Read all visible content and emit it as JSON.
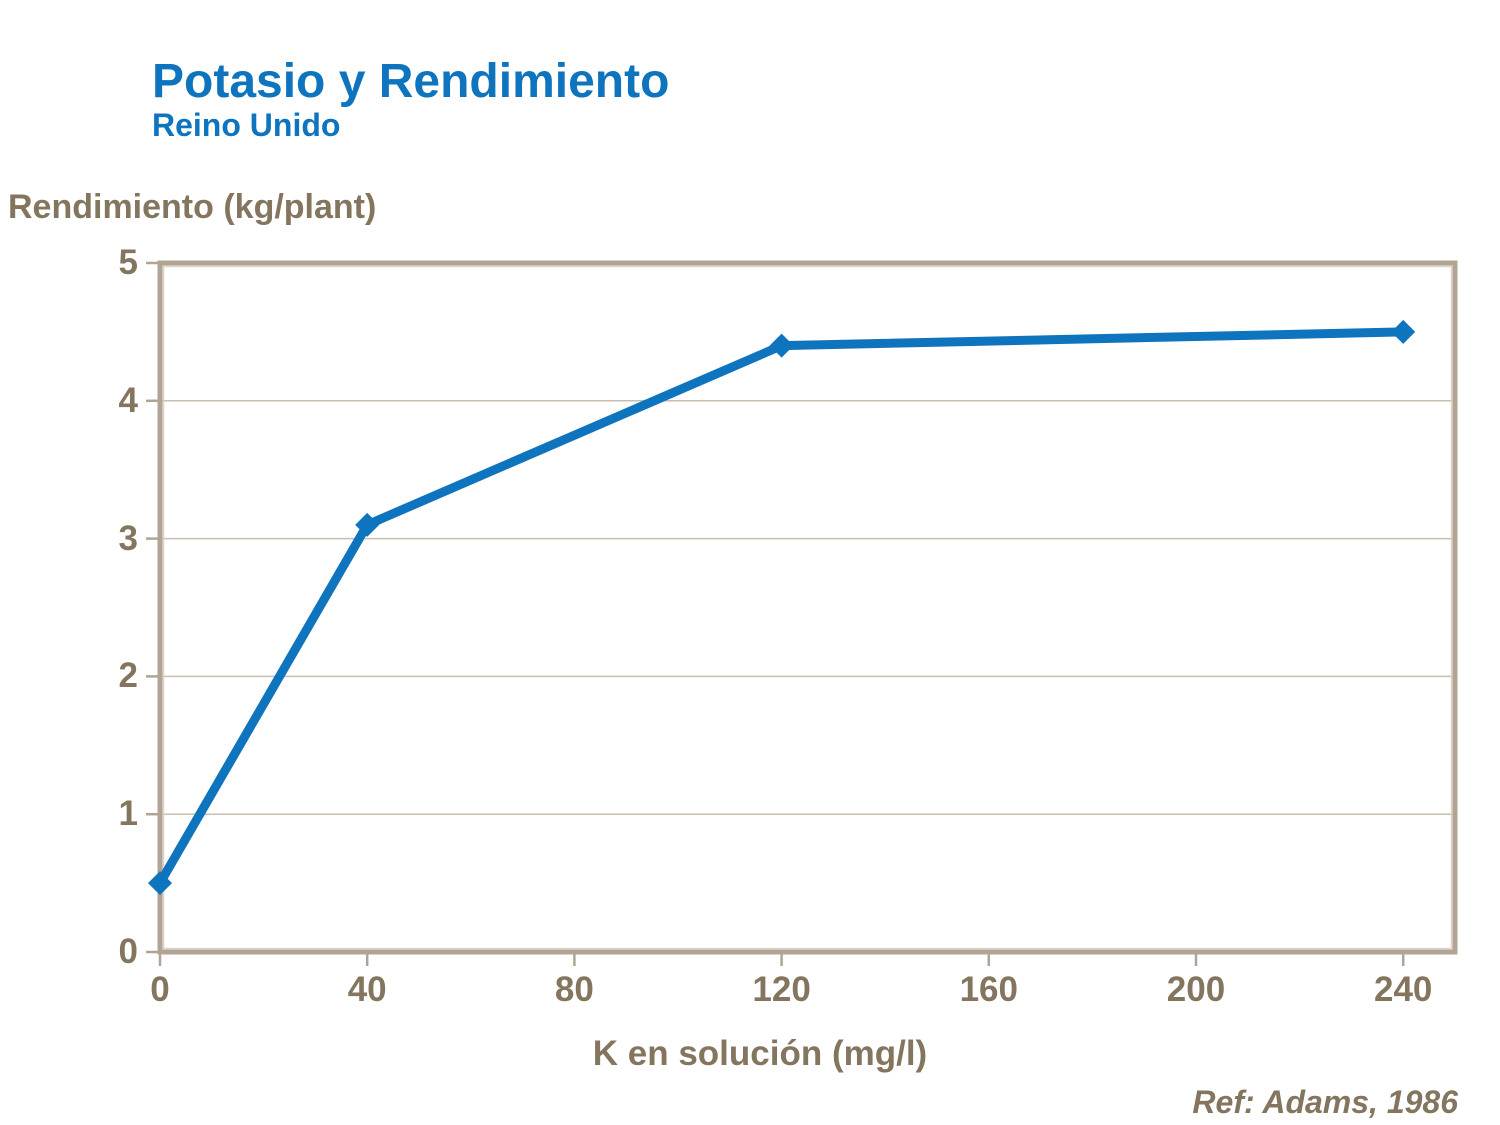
{
  "header": {
    "title": "Potasio y Rendimiento",
    "subtitle": "Reino Unido"
  },
  "chart_data": {
    "type": "line",
    "title": "Potasio y Rendimiento",
    "subtitle": "Reino Unido",
    "xlabel": "K en solución (mg/l)",
    "ylabel": "Rendimiento (kg/plant)",
    "x": [
      0,
      40,
      120,
      240
    ],
    "y": [
      0.5,
      3.1,
      4.4,
      4.5
    ],
    "series": [
      {
        "name": "Rendimiento (kg/plant)",
        "x": [
          0,
          40,
          120,
          240
        ],
        "values": [
          0.5,
          3.1,
          4.4,
          4.5
        ]
      }
    ],
    "xticks": [
      0,
      40,
      80,
      120,
      160,
      200,
      240
    ],
    "yticks": [
      0,
      1,
      2,
      3,
      4,
      5
    ],
    "xlim": [
      0,
      250
    ],
    "ylim": [
      0,
      5
    ],
    "grid": "horizontal-only",
    "legend": "none",
    "marker": "diamond",
    "annotation": "Ref: Adams, 1986"
  },
  "colors": {
    "accent_blue": "#0E74BE",
    "line_blue": "#0E74BE",
    "text_brown": "#84755F",
    "frame": "#B2A494",
    "frame_highlight": "#DCD4C7",
    "gridline": "#C9BEAF",
    "background": "#FFFFFF"
  }
}
